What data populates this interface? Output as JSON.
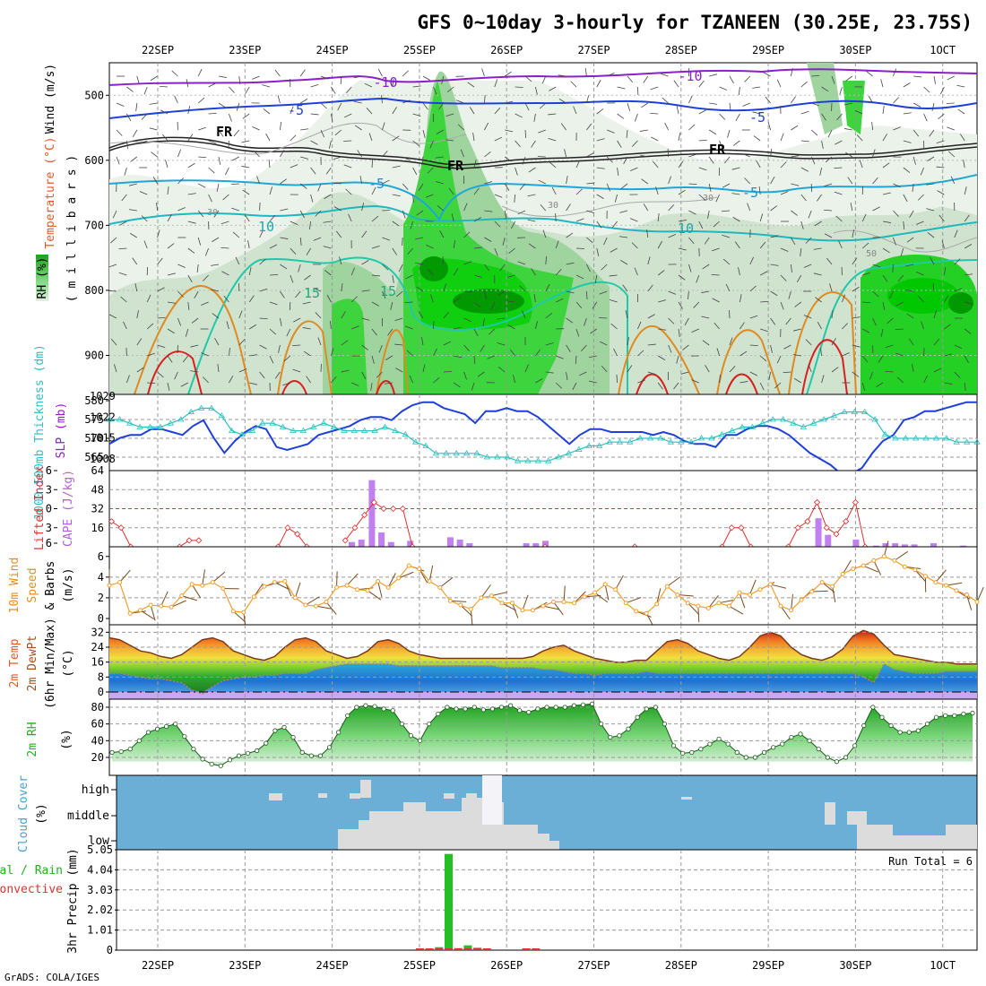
{
  "title": "GFS 0~10day 3-hourly for TZANEEN (30.25E, 23.75S)",
  "footer": "GrADS: COLA/IGES",
  "dates": [
    "22SEP",
    "23SEP",
    "24SEP",
    "25SEP",
    "26SEP",
    "27SEP",
    "28SEP",
    "29SEP",
    "30SEP",
    "1OCT"
  ],
  "colors": {
    "rh_light": "#e6f0e6",
    "rh_mid": "#b8d8b8",
    "rh_green": "#4ccc4c",
    "rh_bright": "#00e600",
    "rh_dark": "#00a000",
    "temp_purple": "#8b1fc9",
    "temp_blue": "#1f3fd9",
    "temp_cyan": "#1fa7d9",
    "temp_teal": "#1fc9a7",
    "temp_orange": "#e08a1f",
    "temp_red": "#d91f1f",
    "slp": "#1f3fd9",
    "thickness": "#2fbfbf",
    "lifted": "#e03030",
    "cape": "#c080f0",
    "wind_speed": "#f0a030",
    "barb": "#7a4a20",
    "cloud": "#6baed6",
    "precip_rain": "#22c022",
    "precip_conv": "#e03030"
  },
  "panels": {
    "upper": {
      "ylabel_wind": "Wind (m/s)",
      "ylabel_temp": "Temperature (°C)",
      "ylabel_rh": "RH (%)",
      "ylabel_mb": "( m i l l i b a r s )",
      "contour_labels": [
        "-10",
        "-10",
        "-5",
        "-5",
        "FR",
        "FR",
        "FR",
        "-5",
        "-5",
        "10",
        "10",
        "15",
        "15",
        "30",
        "30",
        "30",
        "50"
      ]
    },
    "slp": {
      "ylabel_thk": "1000-500mb Thickness (dm)",
      "ylabel_slp": "SLP (mb)"
    },
    "cape": {
      "ylabel_li": "Lifted Index",
      "ylabel_cape": "CAPE (J/kg)"
    },
    "wind": {
      "ylabel_a": "10m Wind",
      "ylabel_b": "Speed",
      "ylabel_c": "& Barbs",
      "ylabel_d": "(m/s)"
    },
    "temp": {
      "ylabel_a": "2m Temp",
      "ylabel_b": "2m DewPt",
      "ylabel_c": "(6hr Min/Max)",
      "ylabel_d": "(°C)"
    },
    "rh": {
      "ylabel_a": "2m RH",
      "ylabel_b": "(%)"
    },
    "cloud": {
      "ylabel_a": "Cloud Cover",
      "ylabel_b": "(%)",
      "levels": [
        "high",
        "middle",
        "low"
      ]
    },
    "precip": {
      "ylabel_a": "Total / Rain",
      "ylabel_b": "Convective",
      "ylabel_c": "3hr Precip (mm)",
      "run_total": "Run Total = 6"
    }
  },
  "chart_data": [
    {
      "type": "area",
      "name": "upper-air cross section",
      "y_ticks": [
        "500",
        "600",
        "700",
        "800",
        "900"
      ],
      "ylim": [
        960,
        450
      ]
    },
    {
      "type": "line",
      "name": "SLP and thickness",
      "left_ticks": [
        "580",
        "575",
        "570",
        "565"
      ],
      "right_ticks": [
        "1029",
        "1022",
        "1015",
        "1008"
      ],
      "series": [
        {
          "name": "SLP (mb)",
          "values": [
            1013,
            1015,
            1016,
            1016,
            1018,
            1018,
            1017,
            1016,
            1019,
            1021,
            1015,
            1010,
            1014,
            1017,
            1019,
            1018,
            1012,
            1011,
            1012,
            1013,
            1016,
            1017,
            1018,
            1019,
            1021,
            1022,
            1022,
            1021,
            1024,
            1026,
            1027,
            1027,
            1025,
            1024,
            1023,
            1020,
            1024,
            1024,
            1025,
            1024,
            1024,
            1022,
            1019,
            1016,
            1013,
            1016,
            1018,
            1018,
            1017,
            1017,
            1017,
            1017,
            1016,
            1017,
            1016,
            1014,
            1013,
            1013,
            1012,
            1016,
            1016,
            1018,
            1019,
            1019,
            1018,
            1016,
            1013,
            1010,
            1008,
            1006,
            1003,
            1003,
            1005,
            1010,
            1014,
            1016,
            1021,
            1022,
            1024,
            1024,
            1025,
            1026,
            1027,
            1027
          ]
        },
        {
          "name": "Thickness (dm)",
          "values": [
            575,
            575,
            574,
            573,
            573,
            573,
            574,
            575,
            577,
            578,
            578,
            576,
            572,
            571,
            572,
            574,
            574,
            573,
            572,
            572,
            573,
            574,
            573,
            572,
            572,
            572,
            572,
            573,
            572,
            571,
            569,
            568,
            566,
            566,
            566,
            566,
            566,
            565,
            565,
            565,
            564,
            564,
            564,
            564,
            565,
            566,
            567,
            568,
            568,
            569,
            569,
            569,
            570,
            570,
            570,
            569,
            569,
            569,
            570,
            570,
            571,
            572,
            573,
            573,
            574,
            575,
            575,
            574,
            573,
            574,
            575,
            576,
            577,
            577,
            577,
            575,
            571,
            570,
            570,
            570,
            570,
            570,
            570,
            569,
            569,
            569
          ]
        }
      ]
    },
    {
      "type": "bar",
      "name": "CAPE and Lifted Index",
      "left_ticks": [
        "-6",
        "-3",
        "0",
        "3",
        "6"
      ],
      "right_ticks": [
        "64",
        "48",
        "32",
        "16"
      ],
      "cape_bars": [
        {
          "x": 24.22,
          "v": 4
        },
        {
          "x": 24.33,
          "v": 6
        },
        {
          "x": 24.45,
          "v": 56
        },
        {
          "x": 24.56,
          "v": 12
        },
        {
          "x": 24.67,
          "v": 4
        },
        {
          "x": 24.89,
          "v": 5
        },
        {
          "x": 25.35,
          "v": 8
        },
        {
          "x": 25.46,
          "v": 6
        },
        {
          "x": 25.57,
          "v": 3
        },
        {
          "x": 26.22,
          "v": 3
        },
        {
          "x": 26.33,
          "v": 3
        },
        {
          "x": 26.44,
          "v": 5
        },
        {
          "x": 29.57,
          "v": 24
        },
        {
          "x": 29.68,
          "v": 10
        },
        {
          "x": 30.0,
          "v": 6
        },
        {
          "x": 30.23,
          "v": 1
        },
        {
          "x": 30.34,
          "v": 3
        },
        {
          "x": 30.45,
          "v": 3
        },
        {
          "x": 30.56,
          "v": 2
        },
        {
          "x": 30.67,
          "v": 2
        },
        {
          "x": 30.89,
          "v": 3
        },
        {
          "x": 31.23,
          "v": 1
        }
      ],
      "lifted_index": [
        {
          "x": 21.47,
          "v": 2
        },
        {
          "x": 21.58,
          "v": 3
        },
        {
          "x": 21.69,
          "v": 6
        },
        {
          "x": 22.25,
          "v": 6
        },
        {
          "x": 22.36,
          "v": 5
        },
        {
          "x": 22.47,
          "v": 5
        },
        {
          "x": 23.38,
          "v": 6
        },
        {
          "x": 23.49,
          "v": 3
        },
        {
          "x": 23.6,
          "v": 4
        },
        {
          "x": 23.71,
          "v": 6
        },
        {
          "x": 24.15,
          "v": 5
        },
        {
          "x": 24.26,
          "v": 3
        },
        {
          "x": 24.37,
          "v": 1
        },
        {
          "x": 24.48,
          "v": -1
        },
        {
          "x": 24.59,
          "v": 0
        },
        {
          "x": 24.7,
          "v": 0
        },
        {
          "x": 24.81,
          "v": 0
        },
        {
          "x": 24.92,
          "v": 6
        },
        {
          "x": 26.44,
          "v": 6
        },
        {
          "x": 27.47,
          "v": 6
        },
        {
          "x": 28.47,
          "v": 6
        },
        {
          "x": 28.58,
          "v": 3
        },
        {
          "x": 28.69,
          "v": 3
        },
        {
          "x": 28.8,
          "v": 6
        },
        {
          "x": 29.23,
          "v": 6
        },
        {
          "x": 29.34,
          "v": 3
        },
        {
          "x": 29.45,
          "v": 2
        },
        {
          "x": 29.56,
          "v": -1
        },
        {
          "x": 29.67,
          "v": 3
        },
        {
          "x": 29.78,
          "v": 4
        },
        {
          "x": 29.89,
          "v": 2
        },
        {
          "x": 30.0,
          "v": -1
        },
        {
          "x": 30.11,
          "v": 6
        }
      ]
    },
    {
      "type": "line",
      "name": "10m wind speed",
      "y_ticks": [
        "6",
        "4",
        "2",
        "0"
      ],
      "series": [
        {
          "name": "Speed (m/s)",
          "values": [
            3.2,
            3.5,
            0.5,
            0.8,
            1.3,
            1.2,
            1.1,
            2.2,
            3.3,
            3.2,
            3.5,
            2.9,
            0.7,
            0.6,
            2.1,
            3.1,
            3.5,
            3.6,
            2.0,
            1.3,
            1.2,
            1.6,
            3.0,
            3.2,
            2.8,
            2.7,
            3.6,
            3.0,
            3.9,
            5.1,
            4.8,
            3.6,
            3.0,
            1.7,
            1.3,
            0.9,
            2.0,
            2.2,
            1.5,
            1.5,
            0.8,
            0.8,
            1.2,
            1.6,
            1.6,
            1.5,
            2.1,
            2.5,
            3.3,
            2.8,
            1.5,
            0.7,
            0.5,
            1.4,
            3.1,
            2.3,
            1.5,
            1.2,
            1.0,
            1.5,
            1.2,
            2.5,
            2.3,
            2.8,
            3.3,
            1.2,
            0.8,
            1.8,
            2.6,
            3.5,
            3.1,
            4.3,
            4.8,
            5.1,
            5.6,
            6.0,
            5.6,
            5.0,
            4.7,
            4.1,
            3.5,
            3.2,
            2.7,
            2.3,
            1.6
          ]
        }
      ]
    },
    {
      "type": "area",
      "name": "2m temperature and dew point",
      "y_ticks": [
        "32",
        "24",
        "16",
        "8",
        "0"
      ],
      "series": [
        {
          "name": "2m Temp",
          "values": [
            29,
            28,
            25,
            22,
            21,
            19,
            18,
            20,
            24,
            28,
            29,
            27,
            22,
            20,
            18,
            17,
            19,
            24,
            28,
            29,
            27,
            22,
            20,
            18,
            19,
            22,
            27,
            28,
            26,
            22,
            20,
            19,
            18,
            18,
            18,
            18,
            18,
            18,
            18,
            18,
            18,
            19,
            22,
            24,
            25,
            22,
            20,
            18,
            17,
            16,
            16,
            17,
            17,
            22,
            27,
            28,
            26,
            22,
            20,
            18,
            17,
            19,
            24,
            30,
            32,
            30,
            24,
            20,
            18,
            17,
            19,
            23,
            30,
            33,
            31,
            25,
            20,
            19,
            18,
            17,
            16,
            16,
            15,
            15,
            15
          ]
        },
        {
          "name": "2m DewPt",
          "values": [
            10,
            10,
            9,
            8,
            7,
            7,
            6,
            5,
            1,
            -1,
            3,
            6,
            7,
            8,
            8,
            9,
            9,
            10,
            10,
            10,
            12,
            13,
            14,
            15,
            15,
            15,
            15,
            15,
            14,
            14,
            14,
            14,
            14,
            14,
            14,
            14,
            14,
            14,
            13,
            13,
            13,
            13,
            12,
            12,
            11,
            10,
            10,
            9,
            10,
            10,
            10,
            10,
            11,
            10,
            10,
            10,
            10,
            10,
            10,
            10,
            10,
            10,
            10,
            10,
            10,
            10,
            10,
            10,
            10,
            10,
            10,
            10,
            10,
            8,
            5,
            15,
            12,
            11,
            10,
            10,
            10,
            11,
            11,
            11,
            11
          ]
        }
      ]
    },
    {
      "type": "area",
      "name": "2m relative humidity",
      "y_ticks": [
        "80",
        "60",
        "40",
        "20"
      ],
      "series": [
        {
          "name": "2m RH (%)",
          "values": [
            26,
            27,
            30,
            40,
            50,
            54,
            57,
            60,
            45,
            30,
            18,
            12,
            10,
            17,
            22,
            25,
            28,
            37,
            52,
            56,
            44,
            26,
            22,
            22,
            32,
            50,
            70,
            80,
            82,
            81,
            78,
            76,
            60,
            46,
            40,
            60,
            72,
            80,
            78,
            78,
            80,
            77,
            78,
            80,
            82,
            76,
            74,
            78,
            80,
            80,
            80,
            82,
            83,
            84,
            60,
            44,
            46,
            54,
            68,
            78,
            80,
            60,
            34,
            25,
            26,
            30,
            36,
            42,
            36,
            26,
            20,
            20,
            26,
            32,
            36,
            44,
            48,
            40,
            30,
            20,
            15,
            20,
            34,
            58,
            80,
            68,
            58,
            50,
            50,
            52,
            60,
            68,
            70,
            70,
            72,
            73
          ]
        }
      ]
    },
    {
      "type": "area",
      "name": "cloud cover",
      "y_ticks": [
        "high",
        "middle",
        "low"
      ]
    },
    {
      "type": "bar",
      "name": "3hr precip",
      "y_ticks": [
        "5.05",
        "4.04",
        "3.03",
        "2.02",
        "1.01",
        "0"
      ],
      "bars": [
        {
          "x": 25.0,
          "v": 0.04
        },
        {
          "x": 25.11,
          "v": 0.08
        },
        {
          "x": 25.22,
          "v": 0.15
        },
        {
          "x": 25.33,
          "v": 4.84
        },
        {
          "x": 25.44,
          "v": 0.1
        },
        {
          "x": 25.55,
          "v": 0.24
        },
        {
          "x": 25.66,
          "v": 0.12
        },
        {
          "x": 25.77,
          "v": 0.05
        },
        {
          "x": 26.22,
          "v": 0.04
        },
        {
          "x": 26.33,
          "v": 0.04
        }
      ]
    }
  ]
}
